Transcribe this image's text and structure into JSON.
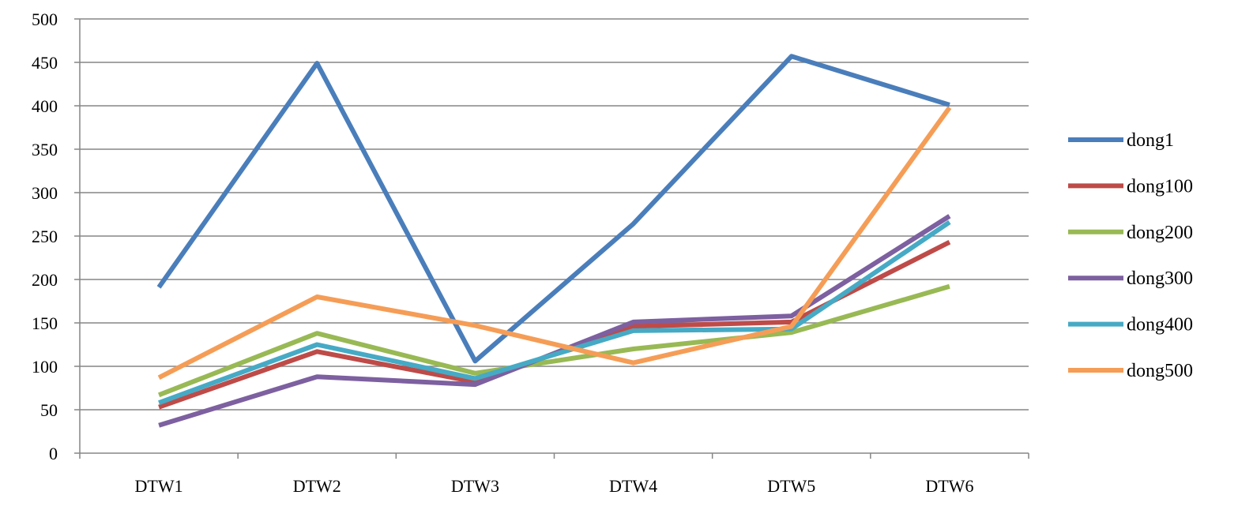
{
  "chart_data": {
    "type": "line",
    "title": "",
    "xlabel": "",
    "ylabel": "",
    "categories": [
      "DTW1",
      "DTW2",
      "DTW3",
      "DTW4",
      "DTW5",
      "DTW6"
    ],
    "ylim": [
      0,
      500
    ],
    "yticks": [
      "0",
      "50",
      "100",
      "150",
      "200",
      "250",
      "300",
      "350",
      "400",
      "450",
      "500"
    ],
    "grid": true,
    "legend_position": "right",
    "series": [
      {
        "name": "dong1",
        "color": "#4A7EBB",
        "values": [
          191,
          449,
          106,
          264,
          457,
          401
        ]
      },
      {
        "name": "dong100",
        "color": "#BE4B48",
        "values": [
          53,
          117,
          82,
          146,
          151,
          243
        ]
      },
      {
        "name": "dong200",
        "color": "#98B954",
        "values": [
          67,
          138,
          92,
          120,
          139,
          192
        ]
      },
      {
        "name": "dong300",
        "color": "#7D60A0",
        "values": [
          32,
          88,
          79,
          151,
          158,
          273
        ]
      },
      {
        "name": "dong400",
        "color": "#46AAC5",
        "values": [
          58,
          125,
          86,
          141,
          143,
          266
        ]
      },
      {
        "name": "dong500",
        "color": "#F59D56",
        "values": [
          87,
          180,
          147,
          104,
          146,
          398
        ]
      }
    ]
  }
}
